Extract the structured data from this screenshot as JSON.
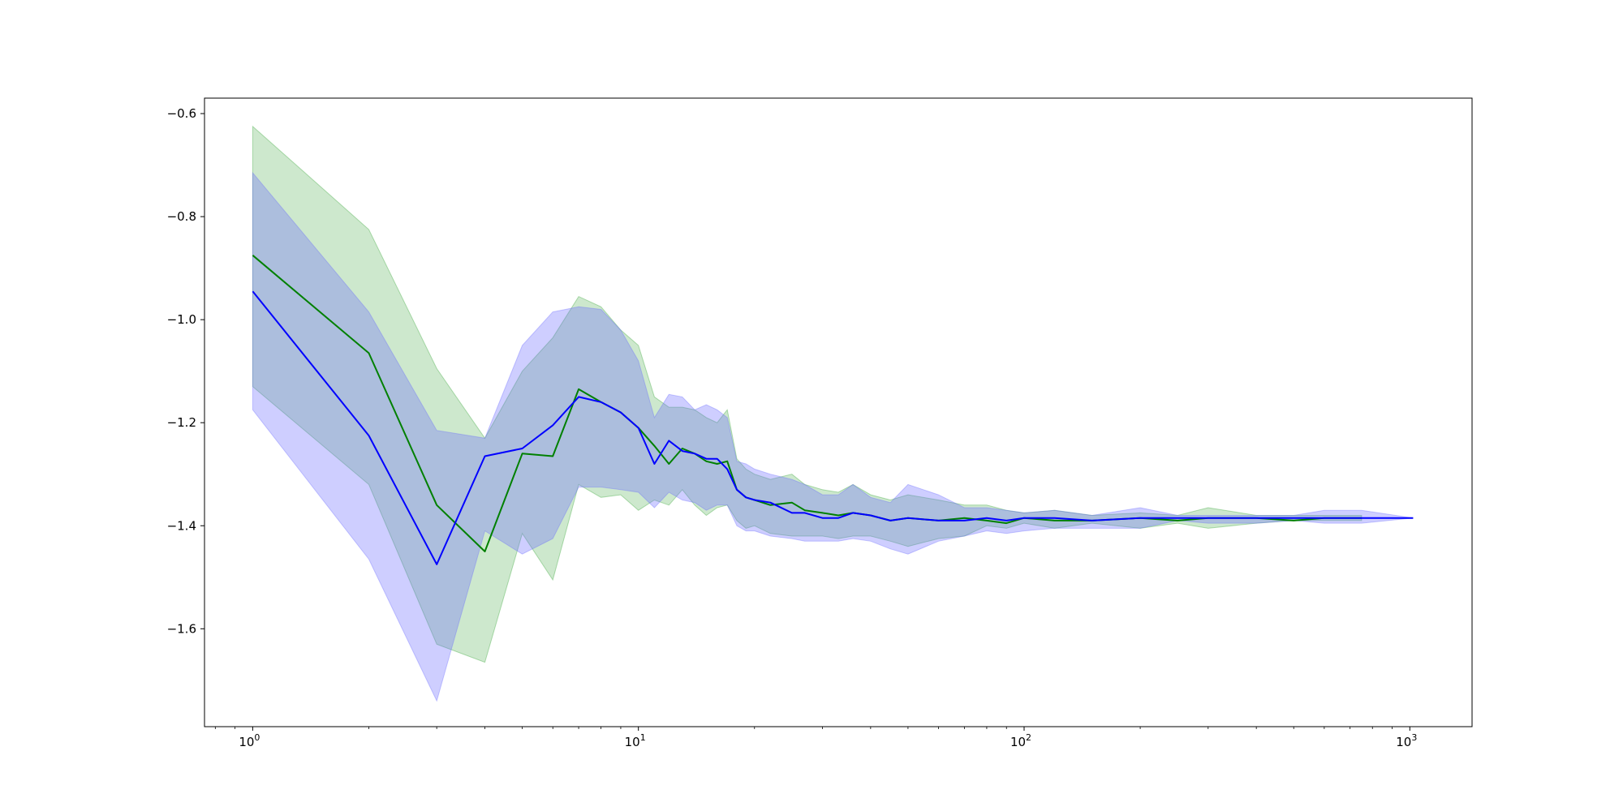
{
  "chart_data": {
    "type": "line",
    "xscale": "log",
    "xlim": [
      0.75,
      1450
    ],
    "ylim": [
      -1.79,
      -0.57
    ],
    "grid": false,
    "legend": "none",
    "y_ticks": [
      -0.6,
      -0.8,
      -1.0,
      -1.2,
      -1.4,
      -1.6
    ],
    "y_tick_labels": [
      "−0.6",
      "−0.8",
      "−1.0",
      "−1.2",
      "−1.4",
      "−1.6"
    ],
    "x_ticks": [
      1,
      10,
      100,
      1000
    ],
    "x_tick_labels": [
      {
        "base": "10",
        "exp": "0"
      },
      {
        "base": "10",
        "exp": "1"
      },
      {
        "base": "10",
        "exp": "2"
      },
      {
        "base": "10",
        "exp": "3"
      }
    ],
    "series": [
      {
        "color": "#008000",
        "band_color": "#2ca02c",
        "x": [
          1,
          2,
          3,
          4,
          5,
          6,
          7,
          8,
          9,
          10,
          11,
          12,
          13,
          14,
          15,
          16,
          17,
          18,
          19,
          20,
          22,
          25,
          27,
          30,
          33,
          36,
          40,
          45,
          50,
          60,
          70,
          80,
          90,
          100,
          120,
          150,
          200,
          250,
          300,
          400,
          500,
          600,
          750
        ],
        "y": [
          -0.875,
          -1.065,
          -1.36,
          -1.45,
          -1.26,
          -1.265,
          -1.135,
          -1.16,
          -1.18,
          -1.21,
          -1.245,
          -1.28,
          -1.25,
          -1.26,
          -1.275,
          -1.28,
          -1.275,
          -1.33,
          -1.345,
          -1.35,
          -1.36,
          -1.355,
          -1.37,
          -1.375,
          -1.38,
          -1.375,
          -1.38,
          -1.39,
          -1.385,
          -1.39,
          -1.385,
          -1.39,
          -1.395,
          -1.385,
          -1.39,
          -1.39,
          -1.385,
          -1.39,
          -1.385,
          -1.385,
          -1.39,
          -1.385,
          -1.385
        ],
        "lower": [
          -1.13,
          -1.32,
          -1.63,
          -1.665,
          -1.415,
          -1.505,
          -1.32,
          -1.345,
          -1.34,
          -1.37,
          -1.35,
          -1.36,
          -1.33,
          -1.36,
          -1.38,
          -1.365,
          -1.36,
          -1.39,
          -1.405,
          -1.4,
          -1.415,
          -1.42,
          -1.42,
          -1.42,
          -1.425,
          -1.42,
          -1.42,
          -1.43,
          -1.44,
          -1.425,
          -1.42,
          -1.4,
          -1.405,
          -1.395,
          -1.405,
          -1.395,
          -1.405,
          -1.395,
          -1.405,
          -1.395,
          -1.39,
          -1.39,
          -1.39
        ],
        "upper": [
          -0.625,
          -0.825,
          -1.095,
          -1.23,
          -1.1,
          -1.035,
          -0.955,
          -0.975,
          -1.02,
          -1.05,
          -1.15,
          -1.17,
          -1.17,
          -1.175,
          -1.19,
          -1.2,
          -1.175,
          -1.27,
          -1.29,
          -1.3,
          -1.31,
          -1.3,
          -1.32,
          -1.33,
          -1.335,
          -1.32,
          -1.34,
          -1.35,
          -1.34,
          -1.35,
          -1.36,
          -1.36,
          -1.37,
          -1.375,
          -1.37,
          -1.38,
          -1.375,
          -1.38,
          -1.365,
          -1.38,
          -1.38,
          -1.38,
          -1.38
        ]
      },
      {
        "color": "#0000ff",
        "band_color": "#6666ff",
        "x": [
          1,
          2,
          3,
          4,
          5,
          6,
          7,
          8,
          9,
          10,
          11,
          12,
          13,
          14,
          15,
          16,
          17,
          18,
          19,
          20,
          22,
          25,
          27,
          30,
          33,
          36,
          40,
          45,
          50,
          60,
          70,
          80,
          90,
          100,
          120,
          150,
          200,
          250,
          300,
          400,
          500,
          600,
          750,
          1020
        ],
        "y": [
          -0.945,
          -1.225,
          -1.475,
          -1.265,
          -1.25,
          -1.205,
          -1.15,
          -1.16,
          -1.18,
          -1.21,
          -1.28,
          -1.235,
          -1.255,
          -1.26,
          -1.27,
          -1.27,
          -1.29,
          -1.33,
          -1.345,
          -1.35,
          -1.355,
          -1.375,
          -1.375,
          -1.385,
          -1.385,
          -1.375,
          -1.38,
          -1.39,
          -1.385,
          -1.39,
          -1.39,
          -1.385,
          -1.39,
          -1.385,
          -1.385,
          -1.39,
          -1.385,
          -1.385,
          -1.385,
          -1.385,
          -1.385,
          -1.385,
          -1.385,
          -1.385
        ],
        "lower": [
          -1.175,
          -1.465,
          -1.74,
          -1.41,
          -1.455,
          -1.425,
          -1.325,
          -1.325,
          -1.33,
          -1.335,
          -1.365,
          -1.335,
          -1.35,
          -1.355,
          -1.37,
          -1.36,
          -1.36,
          -1.4,
          -1.41,
          -1.41,
          -1.42,
          -1.425,
          -1.43,
          -1.43,
          -1.43,
          -1.425,
          -1.43,
          -1.445,
          -1.455,
          -1.43,
          -1.42,
          -1.41,
          -1.415,
          -1.41,
          -1.405,
          -1.405,
          -1.405,
          -1.39,
          -1.395,
          -1.395,
          -1.39,
          -1.395,
          -1.395,
          -1.385
        ],
        "upper": [
          -0.715,
          -0.985,
          -1.215,
          -1.23,
          -1.05,
          -0.985,
          -0.975,
          -0.98,
          -1.02,
          -1.08,
          -1.19,
          -1.145,
          -1.15,
          -1.175,
          -1.165,
          -1.175,
          -1.19,
          -1.275,
          -1.28,
          -1.29,
          -1.3,
          -1.31,
          -1.32,
          -1.34,
          -1.34,
          -1.32,
          -1.345,
          -1.355,
          -1.32,
          -1.34,
          -1.365,
          -1.365,
          -1.37,
          -1.375,
          -1.37,
          -1.38,
          -1.365,
          -1.38,
          -1.38,
          -1.38,
          -1.38,
          -1.37,
          -1.37,
          -1.385
        ]
      }
    ]
  }
}
